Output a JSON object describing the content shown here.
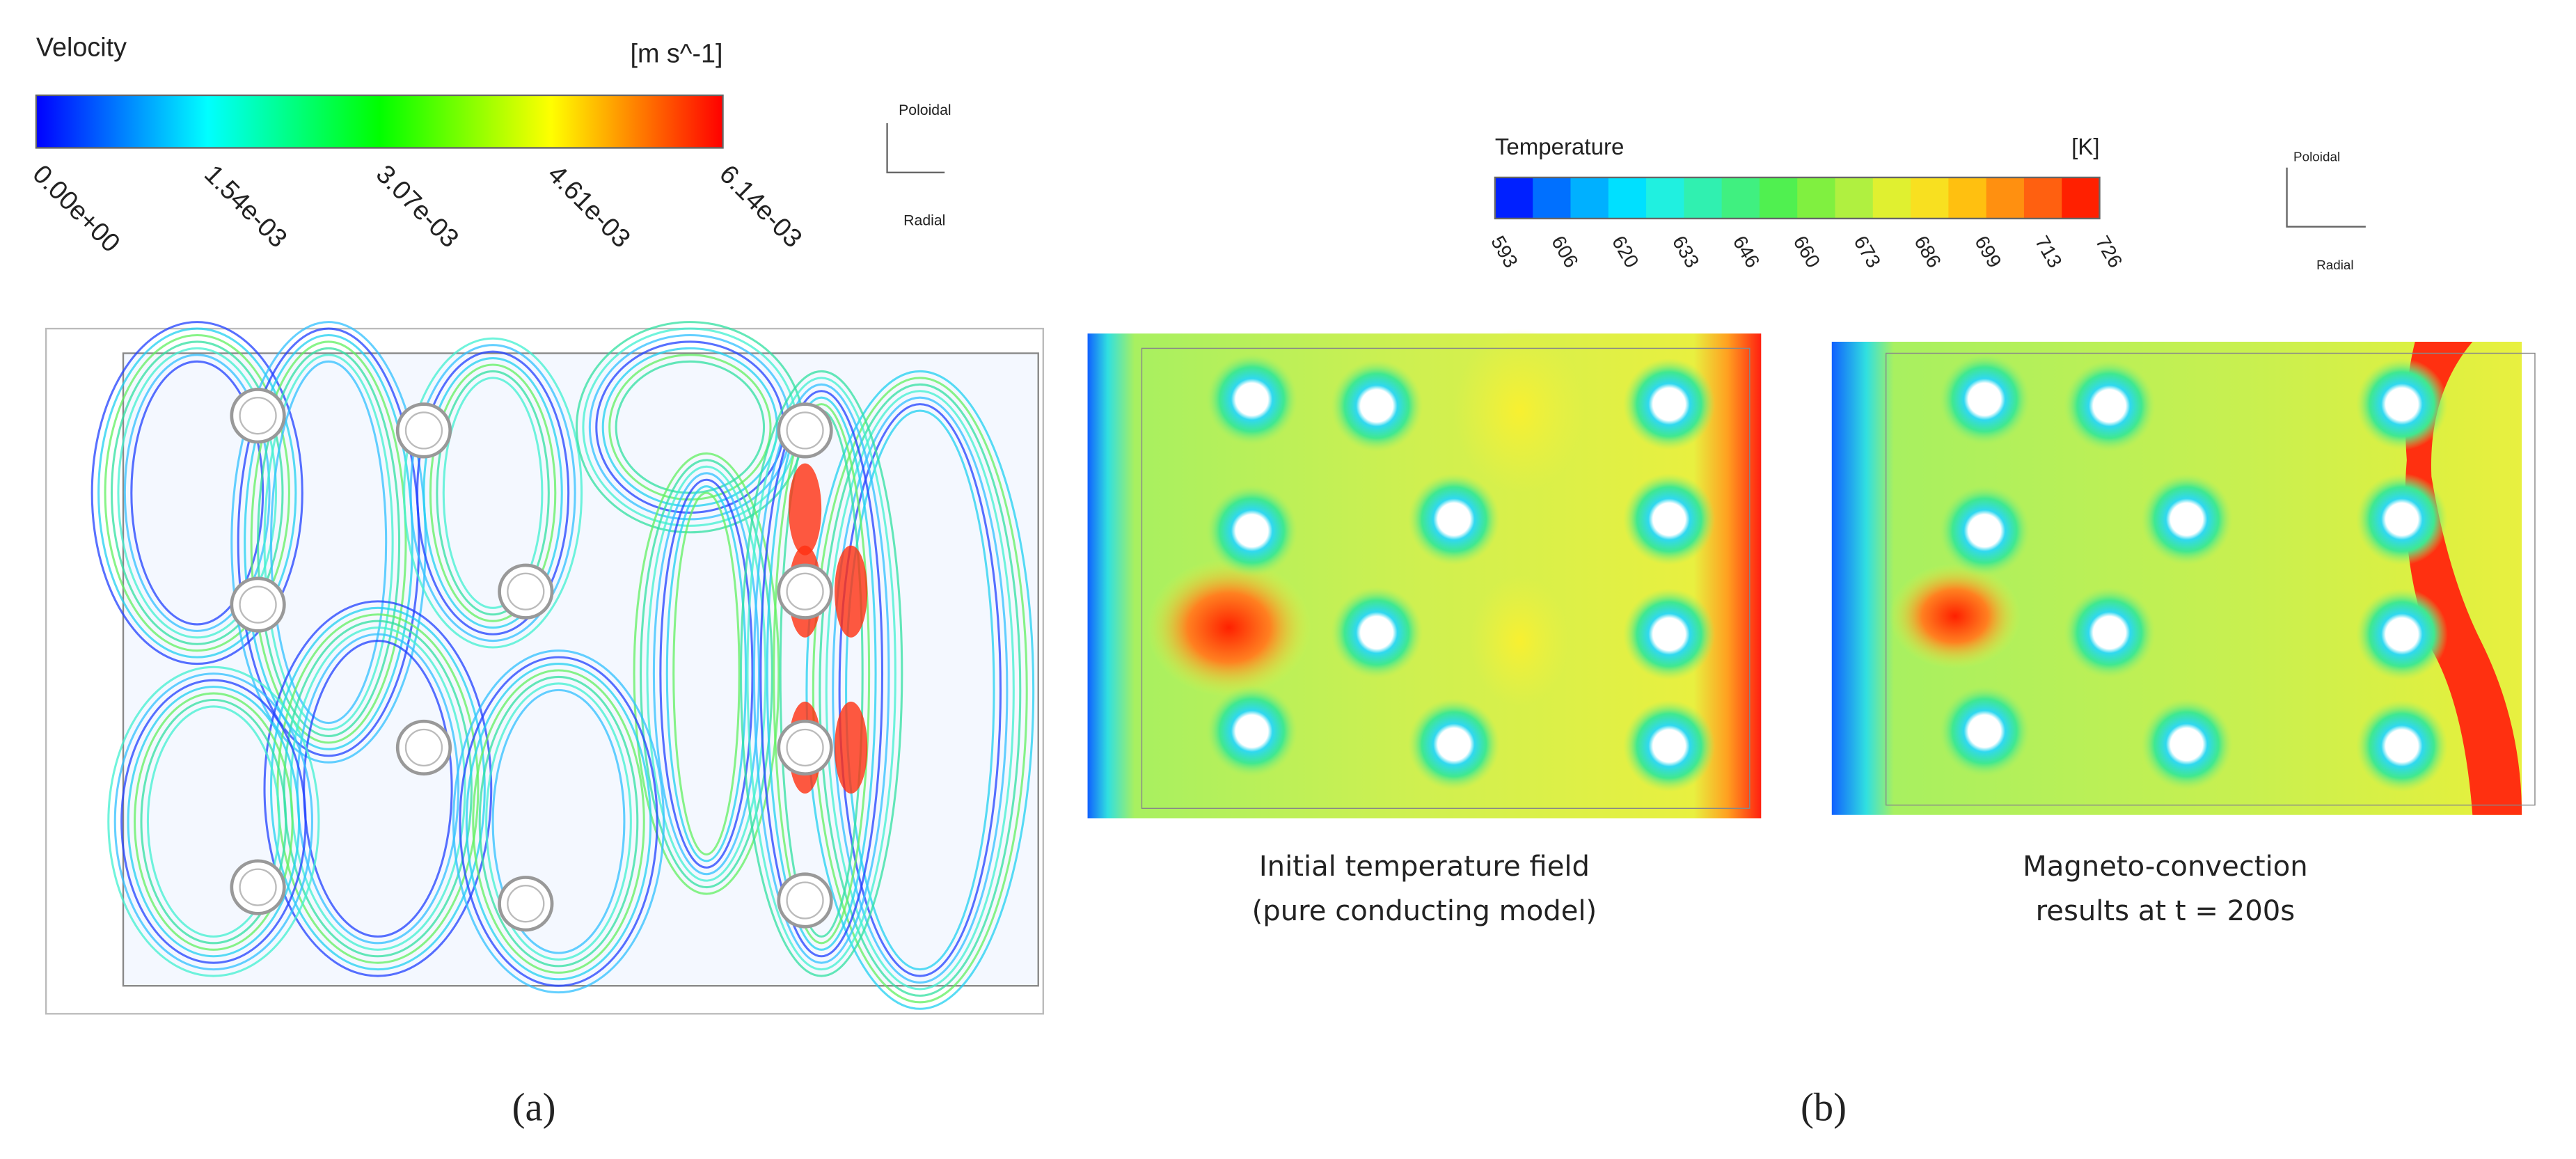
{
  "panel_a": {
    "colorbar": {
      "title": "Velocity",
      "unit": "[m s^-1]",
      "ticks": [
        "0.00e+00",
        "1.54e-03",
        "3.07e-03",
        "4.61e-03",
        "6.14e-03"
      ]
    },
    "axes": {
      "poloidal": "Poloidal",
      "radial": "Radial"
    },
    "label": "(a)"
  },
  "panel_b": {
    "colorbar": {
      "title": "Temperature",
      "unit": "[K]",
      "ticks": [
        "593",
        "606",
        "620",
        "633",
        "646",
        "660",
        "673",
        "686",
        "699",
        "713",
        "726"
      ]
    },
    "axes": {
      "poloidal": "Poloidal",
      "radial": "Radial"
    },
    "captions": [
      [
        "Initial temperature field",
        "(pure conducting model)"
      ],
      [
        "Magneto-convection",
        "results at t = 200s"
      ]
    ],
    "label": "(b)"
  }
}
